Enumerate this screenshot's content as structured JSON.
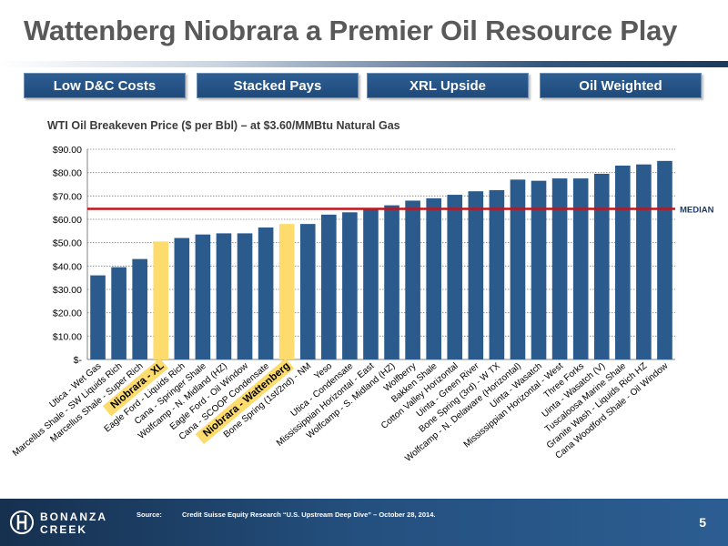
{
  "title": "Wattenberg Niobrara a Premier Oil Resource Play",
  "tabs": [
    {
      "label": "Low D&C Costs"
    },
    {
      "label": "Stacked Pays"
    },
    {
      "label": "XRL Upside"
    },
    {
      "label": "Oil Weighted"
    }
  ],
  "chart_data": {
    "type": "bar",
    "title": "WTI Oil Breakeven Price ($ per Bbl) – at $3.60/MMBtu Natural Gas",
    "ylim": [
      0,
      90
    ],
    "y_ticks": [
      "$-",
      "$10.00",
      "$20.00",
      "$30.00",
      "$40.00",
      "$50.00",
      "$60.00",
      "$70.00",
      "$80.00",
      "$90.00"
    ],
    "grid": true,
    "colors": {
      "bar": "#2b5a8c",
      "highlight": "#fddb6d",
      "median_line": "#c0141c",
      "median_label": "#1f3b63"
    },
    "categories": [
      "Utica - Wet Gas",
      "Marcellus Shale - SW Liquids Rich",
      "Marcellus Shale - Super Rich",
      "Niobrara - XL",
      "Eagle Ford - Liquids Rich",
      "Cana - Springer Shale",
      "Wolfcamp - N. Midland (HZ)",
      "Eagle Ford - Oil Window",
      "Cana - SCOOP Condensate",
      "Niobrara - Wattenberg",
      "Bone Spring (1st/2nd) - NM",
      "Yeso",
      "Utica - Condensate",
      "Mississippian Horizontal - East",
      "Wolfcamp - S. Midland (HZ)",
      "Wolfberry",
      "Bakken Shale",
      "Cotton Valley Horizontal",
      "Uinta - Green River",
      "Bone Spring (3rd) - W TX",
      "Wolfcamp - N. Delaware (Horizontal)",
      "Uinta - Wasatch",
      "Mississippian Horizontal - West",
      "Three Forks",
      "Uinta - Wasatch (V)",
      "Tuscaloosa Marine Shale",
      "Granite Wash - Liquids Rich HZ",
      "Cana Woodford Shale - Oil Window"
    ],
    "values": [
      36,
      39.5,
      43,
      50.5,
      52,
      53.5,
      54,
      54,
      56.5,
      58,
      58,
      62,
      63,
      64.5,
      66,
      68,
      69,
      70.5,
      72,
      72.5,
      77,
      76.5,
      77.5,
      77.5,
      79.5,
      83,
      83.5,
      85
    ],
    "highlighted": [
      "Niobrara - XL",
      "Niobrara - Wattenberg"
    ],
    "median": {
      "value": 64.5,
      "label": "MEDIAN"
    }
  },
  "footer": {
    "logo_line1": "BONANZA",
    "logo_line2": "CREEK",
    "source_label": "Source:",
    "source_text": "Credit Suisse Equity Research “U.S. Upstream Deep Dive” – October 28, 2014.",
    "page_number": "5"
  }
}
